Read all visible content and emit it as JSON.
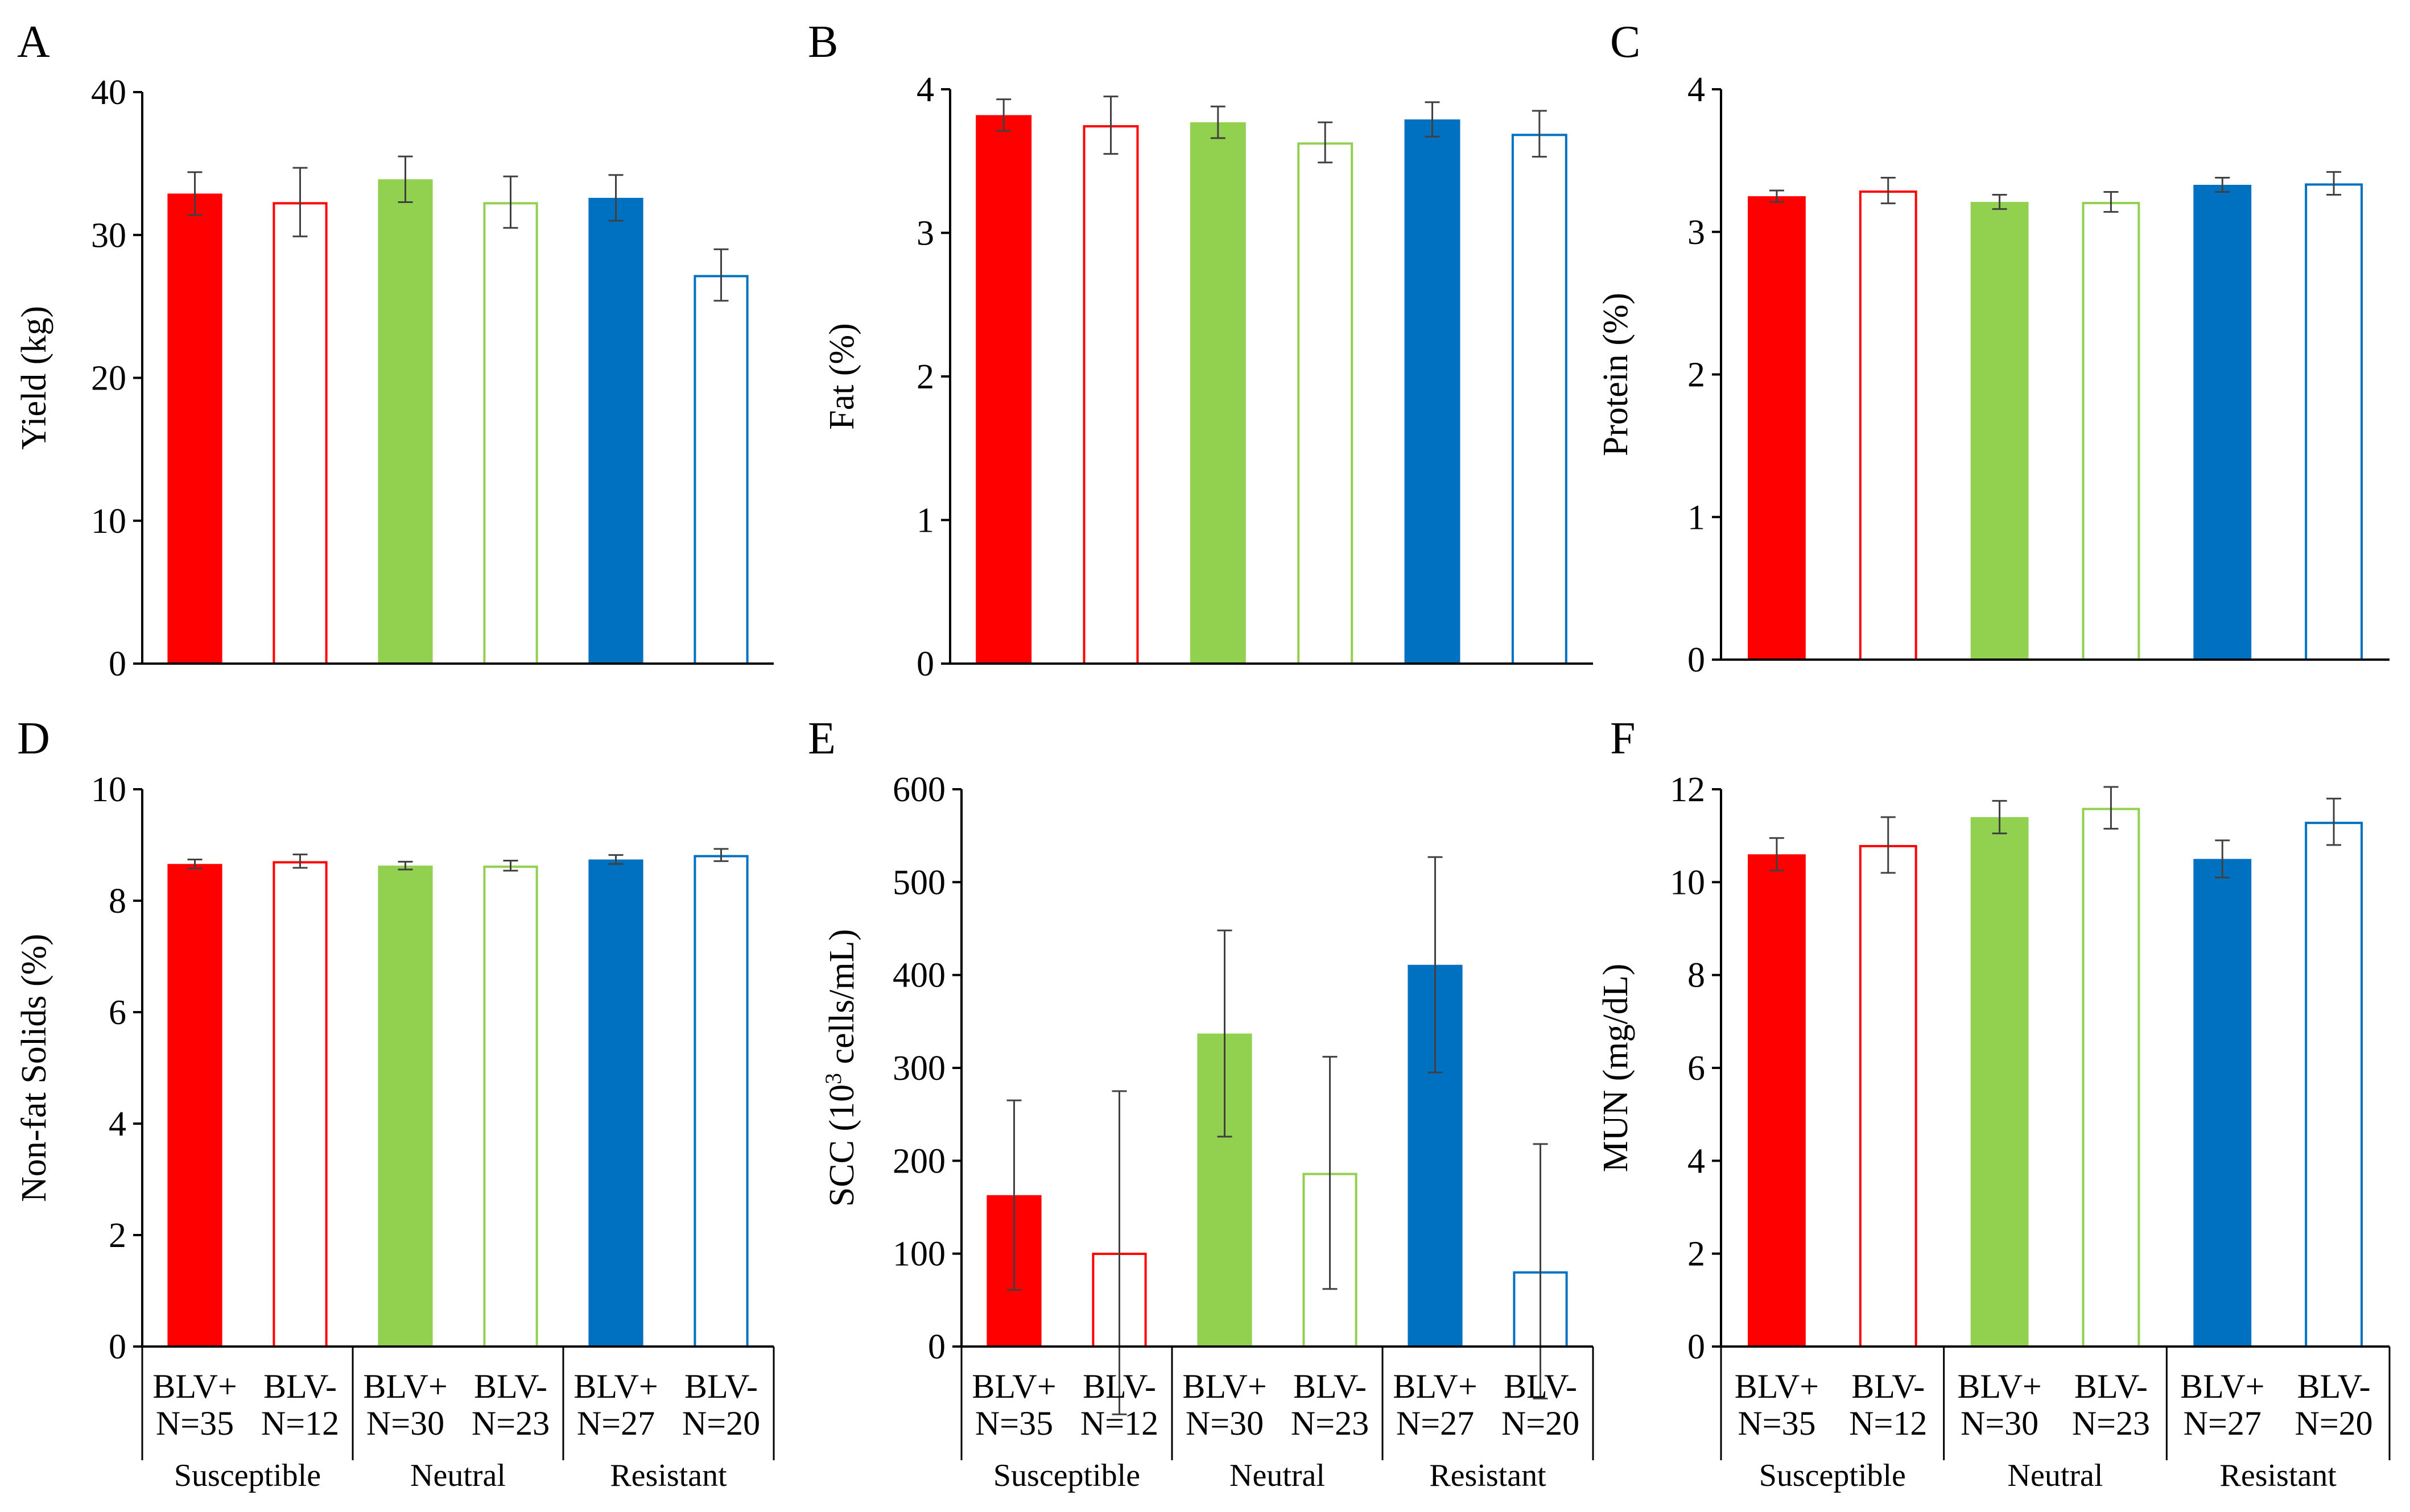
{
  "figure": {
    "categories": [
      "BLV+",
      "BLV-",
      "BLV+",
      "BLV-",
      "BLV+",
      "BLV-"
    ],
    "sample_sizes": [
      "N=35",
      "N=12",
      "N=30",
      "N=23",
      "N=27",
      "N=20"
    ],
    "groups": [
      "Susceptible",
      "Neutral",
      "Resistant"
    ],
    "bar_colors": [
      "#ff0000",
      "#ff0000",
      "#92d050",
      "#92d050",
      "#0070c0",
      "#0070c0"
    ],
    "bar_filled": [
      true,
      false,
      true,
      false,
      true,
      false
    ],
    "axis_color": "#000000",
    "error_bar_color": "#404040"
  },
  "chart_data": [
    {
      "panel": "A",
      "type": "bar",
      "ylabel": "Yield (kg)",
      "ylim": [
        0,
        40
      ],
      "yticks": [
        0,
        10,
        20,
        30,
        40
      ],
      "values": [
        32.9,
        32.3,
        33.9,
        32.3,
        32.6,
        27.2
      ],
      "errors": [
        1.5,
        2.4,
        1.6,
        1.8,
        1.6,
        1.8
      ]
    },
    {
      "panel": "B",
      "type": "bar",
      "ylabel": "Fat (%)",
      "ylim": [
        0,
        4
      ],
      "yticks": [
        0,
        1,
        2,
        3,
        4
      ],
      "values": [
        3.82,
        3.75,
        3.77,
        3.63,
        3.79,
        3.69
      ],
      "errors": [
        0.11,
        0.2,
        0.11,
        0.14,
        0.12,
        0.16
      ]
    },
    {
      "panel": "C",
      "type": "bar",
      "ylabel": "Protein (%)",
      "ylim": [
        0,
        4
      ],
      "yticks": [
        0,
        1,
        2,
        3,
        4
      ],
      "values": [
        3.25,
        3.29,
        3.21,
        3.21,
        3.33,
        3.34
      ],
      "errors": [
        0.04,
        0.09,
        0.05,
        0.07,
        0.05,
        0.08
      ]
    },
    {
      "panel": "D",
      "type": "bar",
      "ylabel": "Non-fat Solids (%)",
      "ylim": [
        0,
        10
      ],
      "yticks": [
        0,
        2,
        4,
        6,
        8,
        10
      ],
      "values": [
        8.66,
        8.71,
        8.63,
        8.63,
        8.74,
        8.82
      ],
      "errors": [
        0.08,
        0.12,
        0.07,
        0.09,
        0.08,
        0.11
      ]
    },
    {
      "panel": "E",
      "type": "bar",
      "ylabel_main": "SCC (10",
      "ylabel_sup": "3",
      "ylabel_tail": " cells/mL)",
      "ylim": [
        0,
        600
      ],
      "yticks": [
        0,
        100,
        200,
        300,
        400,
        500,
        600
      ],
      "values": [
        163,
        101,
        337,
        187,
        411,
        81
      ],
      "errors": [
        102,
        174,
        111,
        125,
        116,
        137
      ]
    },
    {
      "panel": "F",
      "type": "bar",
      "ylabel": "MUN (mg/dL)",
      "ylim": [
        0,
        12
      ],
      "yticks": [
        0,
        2,
        4,
        6,
        8,
        10,
        12
      ],
      "values": [
        10.6,
        10.8,
        11.4,
        11.6,
        10.5,
        11.3
      ],
      "errors": [
        0.35,
        0.6,
        0.35,
        0.45,
        0.4,
        0.5
      ]
    }
  ]
}
